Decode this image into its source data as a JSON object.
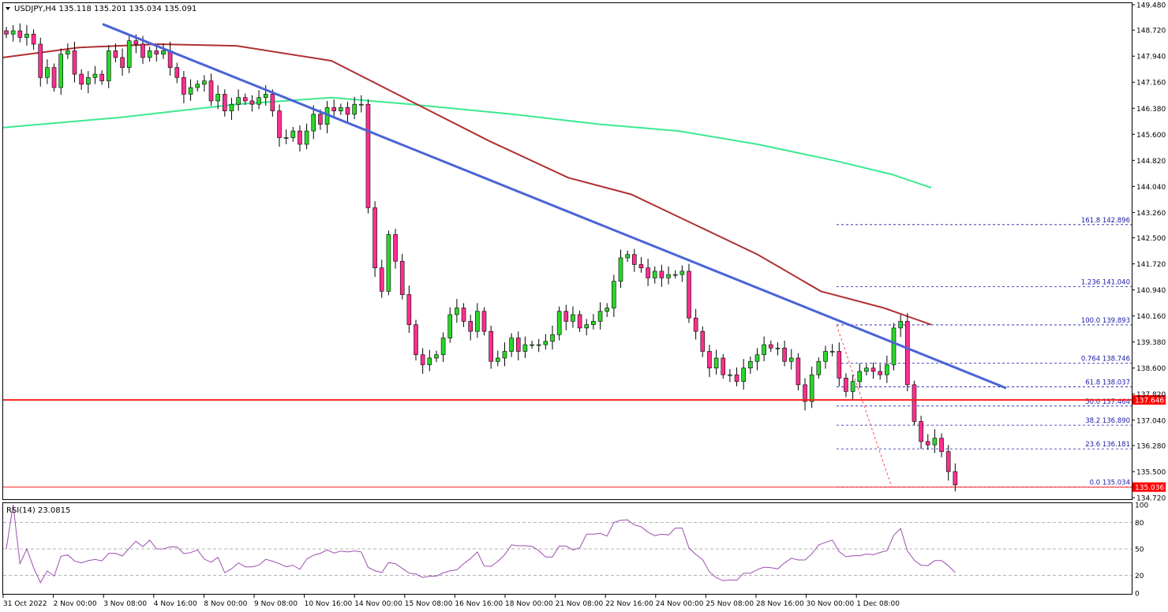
{
  "header": {
    "symbol_line": "USDJPY,H4  135.118 135.201 135.034 135.091",
    "rsi_label": "RSI(14) 23.0815"
  },
  "colors": {
    "bull": "#2bd72b",
    "bear": "#ff2f8f",
    "wick": "#000000",
    "ma_long": "#3ce890",
    "ma_mid": "#b03030",
    "trendline": "#4a63d6",
    "support": "#ff2020",
    "fib": "#1a1aa8",
    "rsi_line": "#9c4fb0",
    "price_tag_bg": "#ff0000",
    "price_tag_text": "#ffffff"
  },
  "chart_data": {
    "type": "candlestick",
    "symbol": "USDJPY",
    "timeframe": "H4",
    "ohlc_last": {
      "open": 135.118,
      "high": 135.201,
      "low": 135.034,
      "close": 135.091
    },
    "price_range": [
      134.6,
      149.6
    ],
    "price_ticks": [
      "149.480",
      "148.720",
      "147.940",
      "147.160",
      "146.380",
      "145.600",
      "144.820",
      "144.040",
      "143.260",
      "142.500",
      "141.720",
      "140.940",
      "140.160",
      "139.380",
      "138.600",
      "137.820",
      "137.040",
      "136.280",
      "135.500",
      "134.720"
    ],
    "x_ticks": [
      "31 Oct 2022",
      "2 Nov 00:00",
      "3 Nov 08:00",
      "4 Nov 16:00",
      "8 Nov 00:00",
      "9 Nov 08:00",
      "10 Nov 16:00",
      "14 Nov 00:00",
      "15 Nov 08:00",
      "16 Nov 16:00",
      "18 Nov 00:00",
      "21 Nov 08:00",
      "22 Nov 16:00",
      "24 Nov 00:00",
      "25 Nov 08:00",
      "28 Nov 16:00",
      "30 Nov 00:00",
      "1 Dec 08:00"
    ],
    "closes": [
      148.6,
      148.7,
      148.5,
      148.6,
      148.3,
      147.3,
      147.6,
      147.0,
      148.0,
      148.1,
      147.4,
      147.1,
      147.3,
      147.4,
      147.2,
      148.1,
      147.9,
      147.6,
      148.4,
      148.3,
      147.9,
      148.1,
      148.0,
      148.1,
      147.6,
      147.3,
      146.8,
      147.0,
      147.1,
      147.2,
      146.6,
      146.8,
      146.3,
      146.5,
      146.7,
      146.6,
      146.5,
      146.7,
      146.8,
      146.3,
      145.5,
      145.5,
      145.7,
      145.3,
      145.7,
      146.2,
      145.9,
      146.4,
      146.3,
      146.4,
      146.2,
      146.5,
      146.5,
      143.4,
      141.6,
      140.9,
      142.6,
      141.8,
      140.8,
      139.9,
      139.0,
      138.7,
      138.9,
      139.0,
      139.5,
      140.2,
      140.4,
      140.0,
      139.7,
      140.3,
      139.7,
      138.8,
      138.9,
      139.1,
      139.5,
      139.1,
      139.3,
      139.3,
      139.3,
      139.4,
      139.6,
      140.3,
      140.0,
      140.2,
      139.8,
      139.9,
      140.0,
      140.3,
      140.4,
      141.2,
      141.9,
      142.0,
      141.7,
      141.6,
      141.3,
      141.5,
      141.3,
      141.4,
      141.4,
      141.5,
      140.1,
      139.7,
      139.1,
      138.6,
      138.9,
      138.4,
      138.4,
      138.2,
      138.6,
      138.8,
      139.0,
      139.3,
      139.2,
      139.2,
      138.8,
      138.9,
      138.1,
      137.6,
      138.4,
      138.8,
      139.1,
      139.1,
      138.3,
      137.9,
      138.2,
      138.5,
      138.6,
      138.5,
      138.4,
      138.7,
      139.8,
      140.0,
      138.1,
      137.0,
      136.4,
      136.3,
      136.5,
      136.1,
      135.5,
      135.1
    ],
    "ma_mid": {
      "description": "moving average (dark red)",
      "start_price": 147.9,
      "end_price": 139.9
    },
    "ma_long": {
      "description": "moving average (green)",
      "start_price": 145.8,
      "end_price": 144.0
    },
    "trendline_points": [
      [
        "3 Nov 00:00",
        148.9
      ],
      [
        "1 Dec 20:00",
        138.0
      ]
    ],
    "support_level": 137.646,
    "current_price": 135.036,
    "fibonacci": [
      {
        "label": "161.8 142.896",
        "price": 142.896
      },
      {
        "label": "1.236 141.040",
        "price": 141.04
      },
      {
        "label": "100.0 139.893",
        "price": 139.893
      },
      {
        "label": "0.764 138.746",
        "price": 138.746
      },
      {
        "label": "61.8 138.037",
        "price": 138.037
      },
      {
        "label": "50.0 137.464",
        "price": 137.464
      },
      {
        "label": "38.2 136.890",
        "price": 136.89
      },
      {
        "label": "23.6 136.181",
        "price": 136.181
      },
      {
        "label": "0.0 135.034",
        "price": 135.034
      }
    ],
    "rsi": {
      "period": 14,
      "value": 23.0815,
      "levels": [
        20,
        50,
        80
      ],
      "ticks": [
        "100",
        "80",
        "50",
        "20",
        "0"
      ],
      "range": [
        0,
        100
      ]
    }
  }
}
